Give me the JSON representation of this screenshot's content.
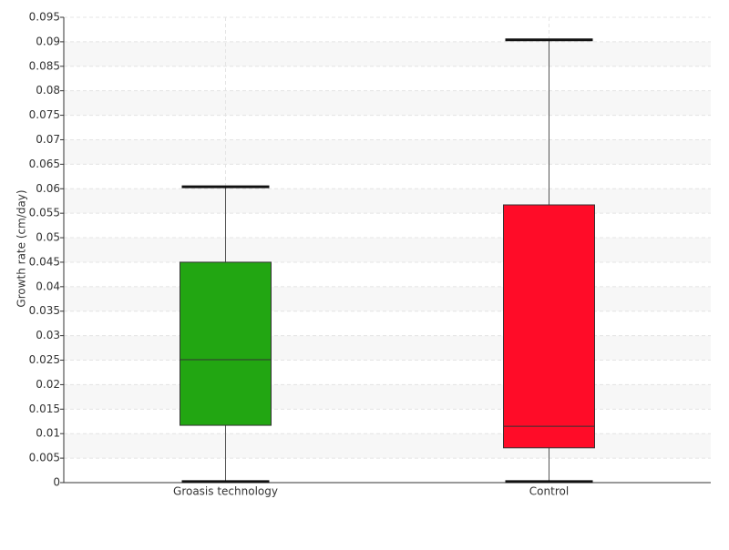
{
  "chart_data": {
    "type": "box",
    "y_label": "Growth rate (cm/day)",
    "categories": [
      "Groasis technology",
      "Control"
    ],
    "colors": [
      "#22a612",
      "#ff0c28"
    ],
    "boxes": [
      {
        "min": 0.0002,
        "q1": 0.0117,
        "median": 0.0251,
        "q3": 0.045,
        "max": 0.0604
      },
      {
        "min": 0.0002,
        "q1": 0.0071,
        "median": 0.0115,
        "q3": 0.0567,
        "max": 0.0904
      }
    ],
    "ylim": [
      0,
      0.095
    ],
    "yticks": [
      0,
      0.005,
      0.01,
      0.015,
      0.02,
      0.025,
      0.03,
      0.035,
      0.04,
      0.045,
      0.05,
      0.055,
      0.06,
      0.065,
      0.07,
      0.075,
      0.08,
      0.085,
      0.09,
      0.095
    ],
    "grid": true
  }
}
